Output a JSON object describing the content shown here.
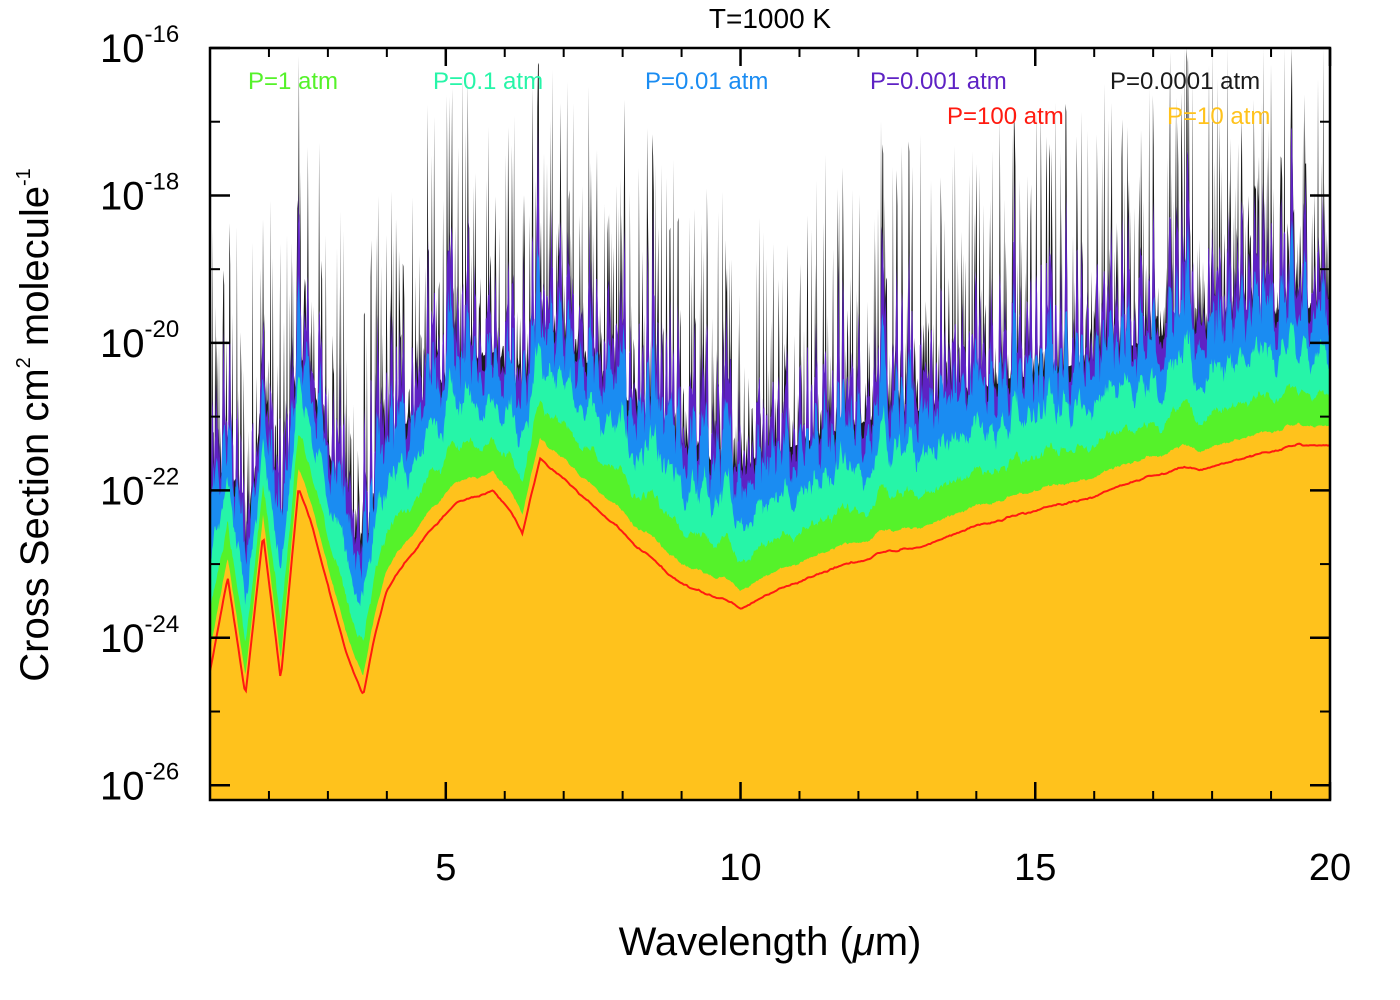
{
  "chart_data": {
    "type": "line",
    "title": "T=1000 K",
    "xlabel_prefix": "Wavelength (",
    "xlabel_unit_symbol": "μ",
    "xlabel_suffix": "m)",
    "ylabel_main": "Cross Section cm",
    "ylabel_sup": "2",
    "ylabel_tail": " molecule",
    "ylabel_sup2": "-1",
    "xscale": "linear",
    "yscale": "log",
    "xlim": [
      1,
      20
    ],
    "ylim_log10": [
      -26.2,
      -16
    ],
    "x_ticks": [
      {
        "value": 5,
        "label": "5"
      },
      {
        "value": 10,
        "label": "10"
      },
      {
        "value": 15,
        "label": "15"
      },
      {
        "value": 20,
        "label": "20"
      }
    ],
    "y_ticks": [
      {
        "exp": -16,
        "base": "10",
        "sup": "-16"
      },
      {
        "exp": -18,
        "base": "10",
        "sup": "-18"
      },
      {
        "exp": -20,
        "base": "10",
        "sup": "-20"
      },
      {
        "exp": -22,
        "base": "10",
        "sup": "-22"
      },
      {
        "exp": -24,
        "base": "10",
        "sup": "-24"
      },
      {
        "exp": -26,
        "base": "10",
        "sup": "-26"
      }
    ],
    "legend_placement": "top, inside plot",
    "series": [
      {
        "name": "P=0.0001 atm",
        "color": "#1a1a1a",
        "offset_log10": 3.4,
        "smooth": 0.0
      },
      {
        "name": "P=0.001 atm",
        "color": "#5e22c4",
        "offset_log10": 3.0,
        "smooth": 0.05
      },
      {
        "name": "P=0.01 atm",
        "color": "#1a8cf2",
        "offset_log10": 2.4,
        "smooth": 0.15
      },
      {
        "name": "P=0.1 atm",
        "color": "#26f5a8",
        "offset_log10": 1.6,
        "smooth": 0.35
      },
      {
        "name": "P=1 atm",
        "color": "#55f22a",
        "offset_log10": 0.9,
        "smooth": 0.6
      },
      {
        "name": "P=10 atm",
        "color": "#ffc21c",
        "offset_log10": 0.35,
        "smooth": 0.85
      },
      {
        "name": "P=100 atm",
        "color": "#ff1a10",
        "offset_log10": 0.0,
        "smooth": 1.0
      }
    ],
    "envelope_log10": {
      "wavelength_um": [
        1.0,
        1.3,
        1.6,
        1.9,
        2.2,
        2.5,
        2.7,
        3.0,
        3.3,
        3.6,
        3.8,
        4.0,
        4.3,
        4.7,
        5.2,
        5.8,
        6.1,
        6.3,
        6.6,
        7.2,
        8.0,
        8.8,
        9.3,
        10.0,
        10.8,
        11.5,
        12.3,
        13.0,
        14.0,
        15.0,
        16.0,
        17.0,
        18.0,
        19.0,
        19.5,
        20.0
      ],
      "log10_sigma_p100": [
        -24.5,
        -23.2,
        -24.8,
        -22.6,
        -24.6,
        -22.0,
        -22.4,
        -23.3,
        -24.2,
        -24.8,
        -24.0,
        -23.4,
        -23.0,
        -22.6,
        -22.2,
        -22.0,
        -22.3,
        -22.6,
        -21.6,
        -22.0,
        -22.6,
        -23.2,
        -23.4,
        -23.6,
        -23.3,
        -23.1,
        -22.9,
        -22.8,
        -22.5,
        -22.3,
        -22.1,
        -21.8,
        -21.7,
        -21.5,
        -21.4,
        -21.4
      ]
    }
  }
}
